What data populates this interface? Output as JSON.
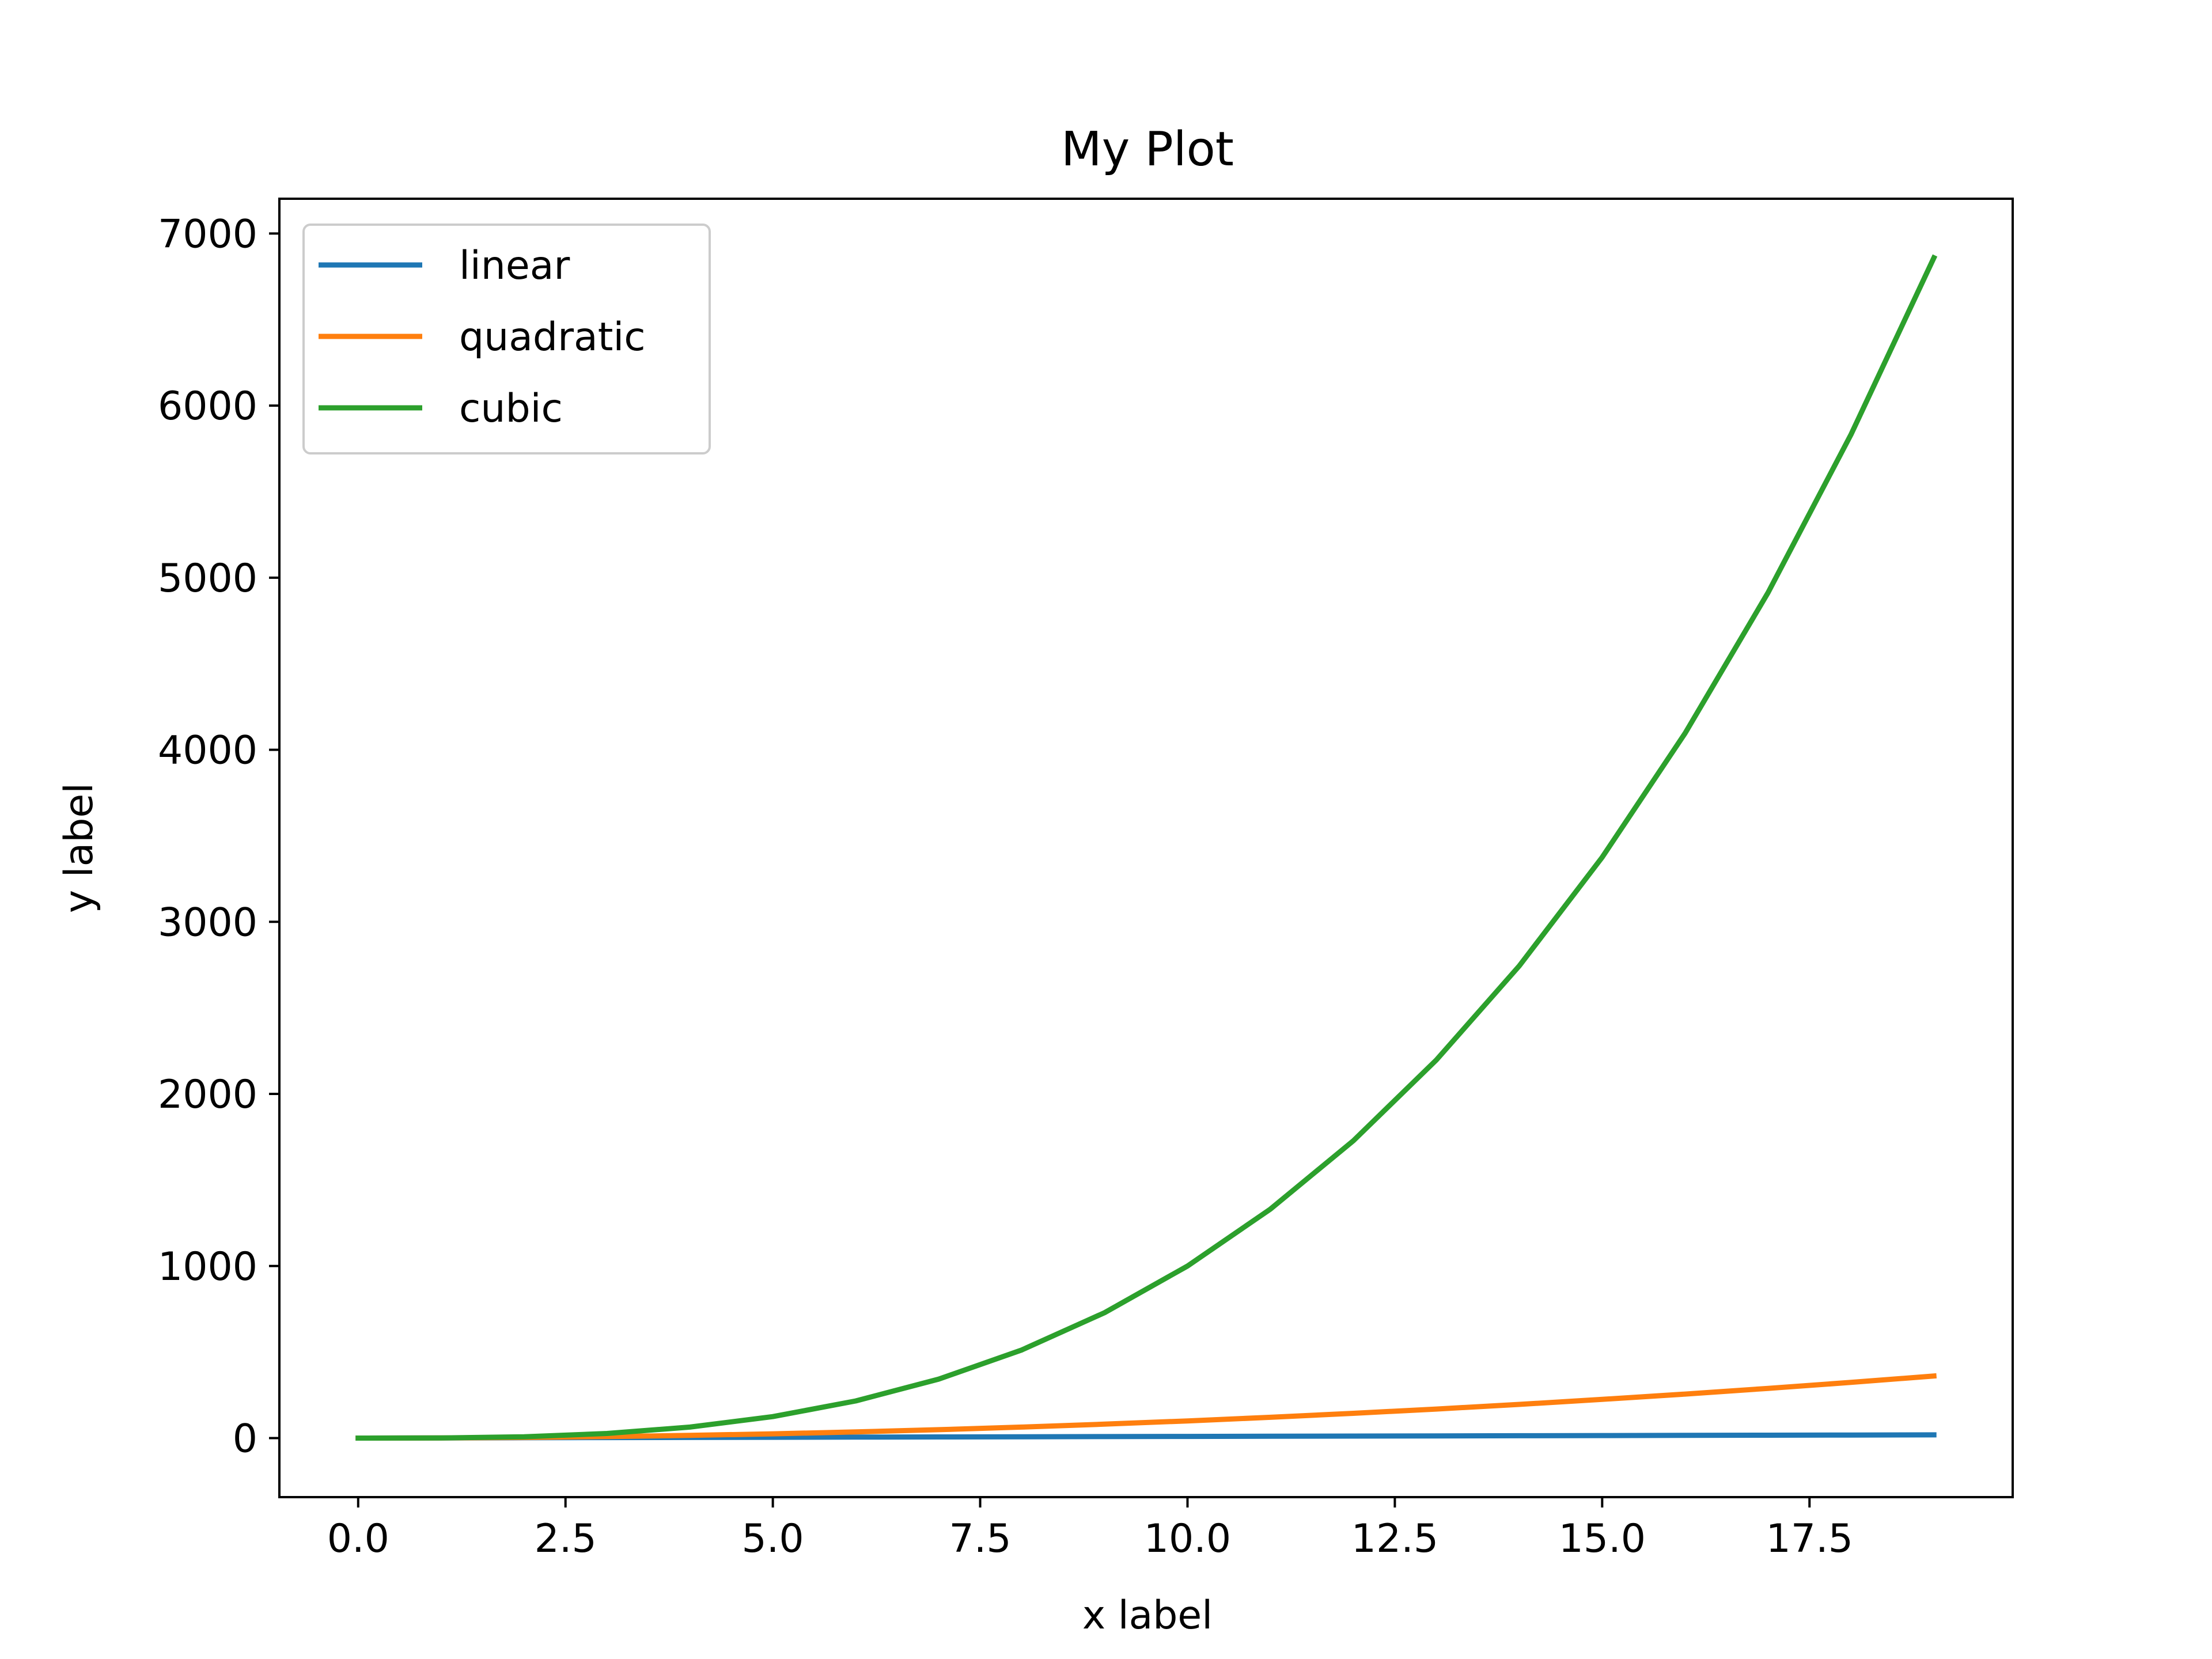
{
  "chart_data": {
    "type": "line",
    "title": "My Plot",
    "xlabel": "x label",
    "ylabel": "y label",
    "xlim": [
      -0.95,
      19.95
    ],
    "ylim": [
      -342.95,
      7201.95
    ],
    "x_ticks": [
      0.0,
      2.5,
      5.0,
      7.5,
      10.0,
      12.5,
      15.0,
      17.5
    ],
    "x_tick_labels": [
      "0.0",
      "2.5",
      "5.0",
      "7.5",
      "10.0",
      "12.5",
      "15.0",
      "17.5"
    ],
    "y_ticks": [
      0,
      1000,
      2000,
      3000,
      4000,
      5000,
      6000,
      7000
    ],
    "y_tick_labels": [
      "0",
      "1000",
      "2000",
      "3000",
      "4000",
      "5000",
      "6000",
      "7000"
    ],
    "grid": false,
    "legend_position": "top-left",
    "x": [
      0,
      1,
      2,
      3,
      4,
      5,
      6,
      7,
      8,
      9,
      10,
      11,
      12,
      13,
      14,
      15,
      16,
      17,
      18,
      19
    ],
    "series": [
      {
        "name": "linear",
        "color": "#1f77b4",
        "values": [
          0,
          1,
          2,
          3,
          4,
          5,
          6,
          7,
          8,
          9,
          10,
          11,
          12,
          13,
          14,
          15,
          16,
          17,
          18,
          19
        ]
      },
      {
        "name": "quadratic",
        "color": "#ff7f0e",
        "values": [
          0,
          1,
          4,
          9,
          16,
          25,
          36,
          49,
          64,
          81,
          100,
          121,
          144,
          169,
          196,
          225,
          256,
          289,
          324,
          361
        ]
      },
      {
        "name": "cubic",
        "color": "#2ca02c",
        "values": [
          0,
          1,
          8,
          27,
          64,
          125,
          216,
          343,
          512,
          729,
          1000,
          1331,
          1728,
          2197,
          2744,
          3375,
          4096,
          4913,
          5832,
          6859
        ]
      }
    ]
  }
}
